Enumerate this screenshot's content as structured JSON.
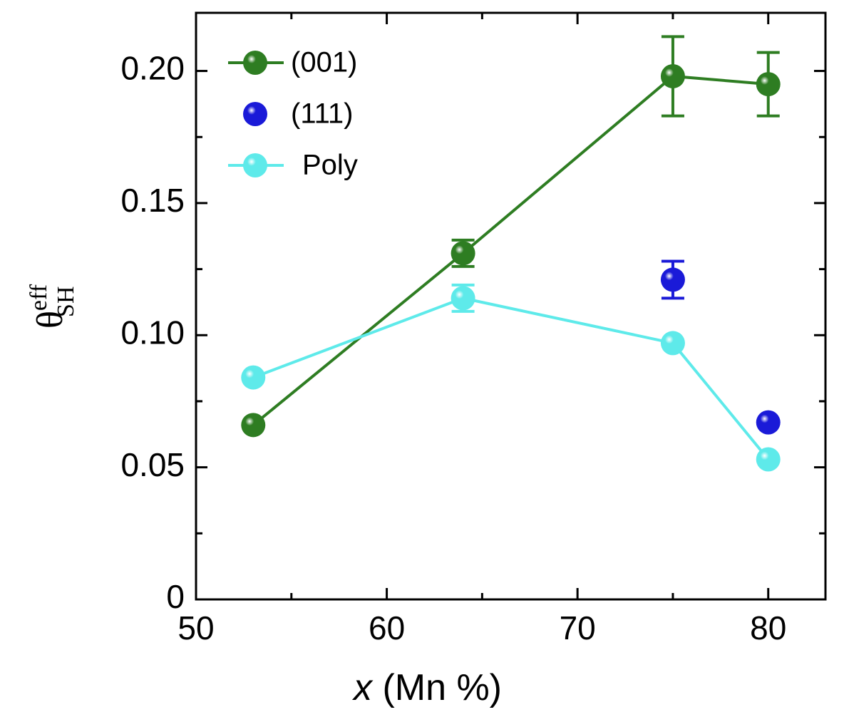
{
  "chart_data": {
    "type": "line",
    "xlabel_var": "x",
    "xlabel_unit": "(Mn %)",
    "ylabel_symbol": "θ",
    "ylabel_sup": "eff",
    "ylabel_sub": "SH",
    "xlim": [
      50,
      83
    ],
    "ylim": [
      0,
      0.222
    ],
    "xticks": [
      50,
      60,
      70,
      80
    ],
    "xminor_ticks": [
      55,
      65,
      75
    ],
    "yticks": [
      0,
      0.05,
      {
        "value": 0.1,
        "label": "0.10"
      },
      0.15,
      {
        "value": 0.2,
        "label": "0.20"
      }
    ],
    "yminor_ticks": [
      0.025,
      0.075,
      0.125,
      0.175
    ],
    "legend": "top-left",
    "series": [
      {
        "name": "(001)",
        "color": "#2e7d22",
        "line": true,
        "x": [
          53,
          64,
          75,
          80
        ],
        "values": [
          0.066,
          0.131,
          0.198,
          0.195
        ],
        "errors": [
          null,
          0.005,
          0.015,
          0.012
        ]
      },
      {
        "name": "(111)",
        "color": "#1a1ad8",
        "line": false,
        "x": [
          75,
          80
        ],
        "values": [
          0.121,
          0.067
        ],
        "errors": [
          0.007,
          null
        ]
      },
      {
        "name": "Poly",
        "color": "#5eeaea",
        "line": true,
        "x": [
          53,
          64,
          75,
          80
        ],
        "values": [
          0.084,
          0.114,
          0.097,
          0.053
        ],
        "errors": [
          null,
          0.005,
          null,
          null
        ]
      }
    ]
  }
}
